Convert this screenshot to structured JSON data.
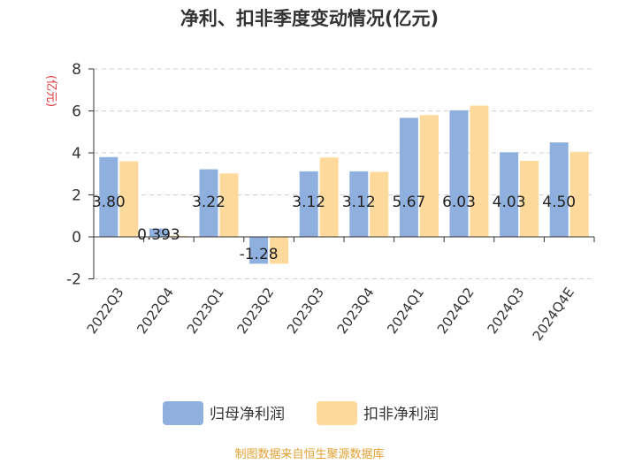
{
  "chart_data": {
    "type": "bar",
    "title": "净利、扣非季度变动情况(亿元)",
    "ylabel": "(亿元)",
    "xlabel": "",
    "ylim": [
      -2,
      8
    ],
    "yticks": [
      -2,
      0,
      2,
      4,
      6,
      8
    ],
    "grid": true,
    "categories": [
      "2022Q3",
      "2022Q4",
      "2023Q1",
      "2023Q2",
      "2023Q3",
      "2023Q4",
      "2024Q1",
      "2024Q2",
      "2024Q3",
      "2024Q4E"
    ],
    "series": [
      {
        "name": "归母净利润",
        "color": "#8fb0de",
        "values": [
          3.8,
          0.393,
          3.22,
          -1.28,
          3.12,
          3.12,
          5.67,
          6.03,
          4.03,
          4.5
        ],
        "labels": [
          "3.80",
          "0.393",
          "3.22",
          "-1.28",
          "3.12",
          "3.12",
          "5.67",
          "6.03",
          "4.03",
          "4.50"
        ]
      },
      {
        "name": "扣非净利润",
        "color": "#fdd99b",
        "values": [
          3.6,
          0.05,
          3.02,
          -1.28,
          3.78,
          3.1,
          5.8,
          6.25,
          3.62,
          4.05
        ]
      }
    ],
    "legend_position": "bottom"
  },
  "source": "制图数据来自恒生聚源数据库"
}
